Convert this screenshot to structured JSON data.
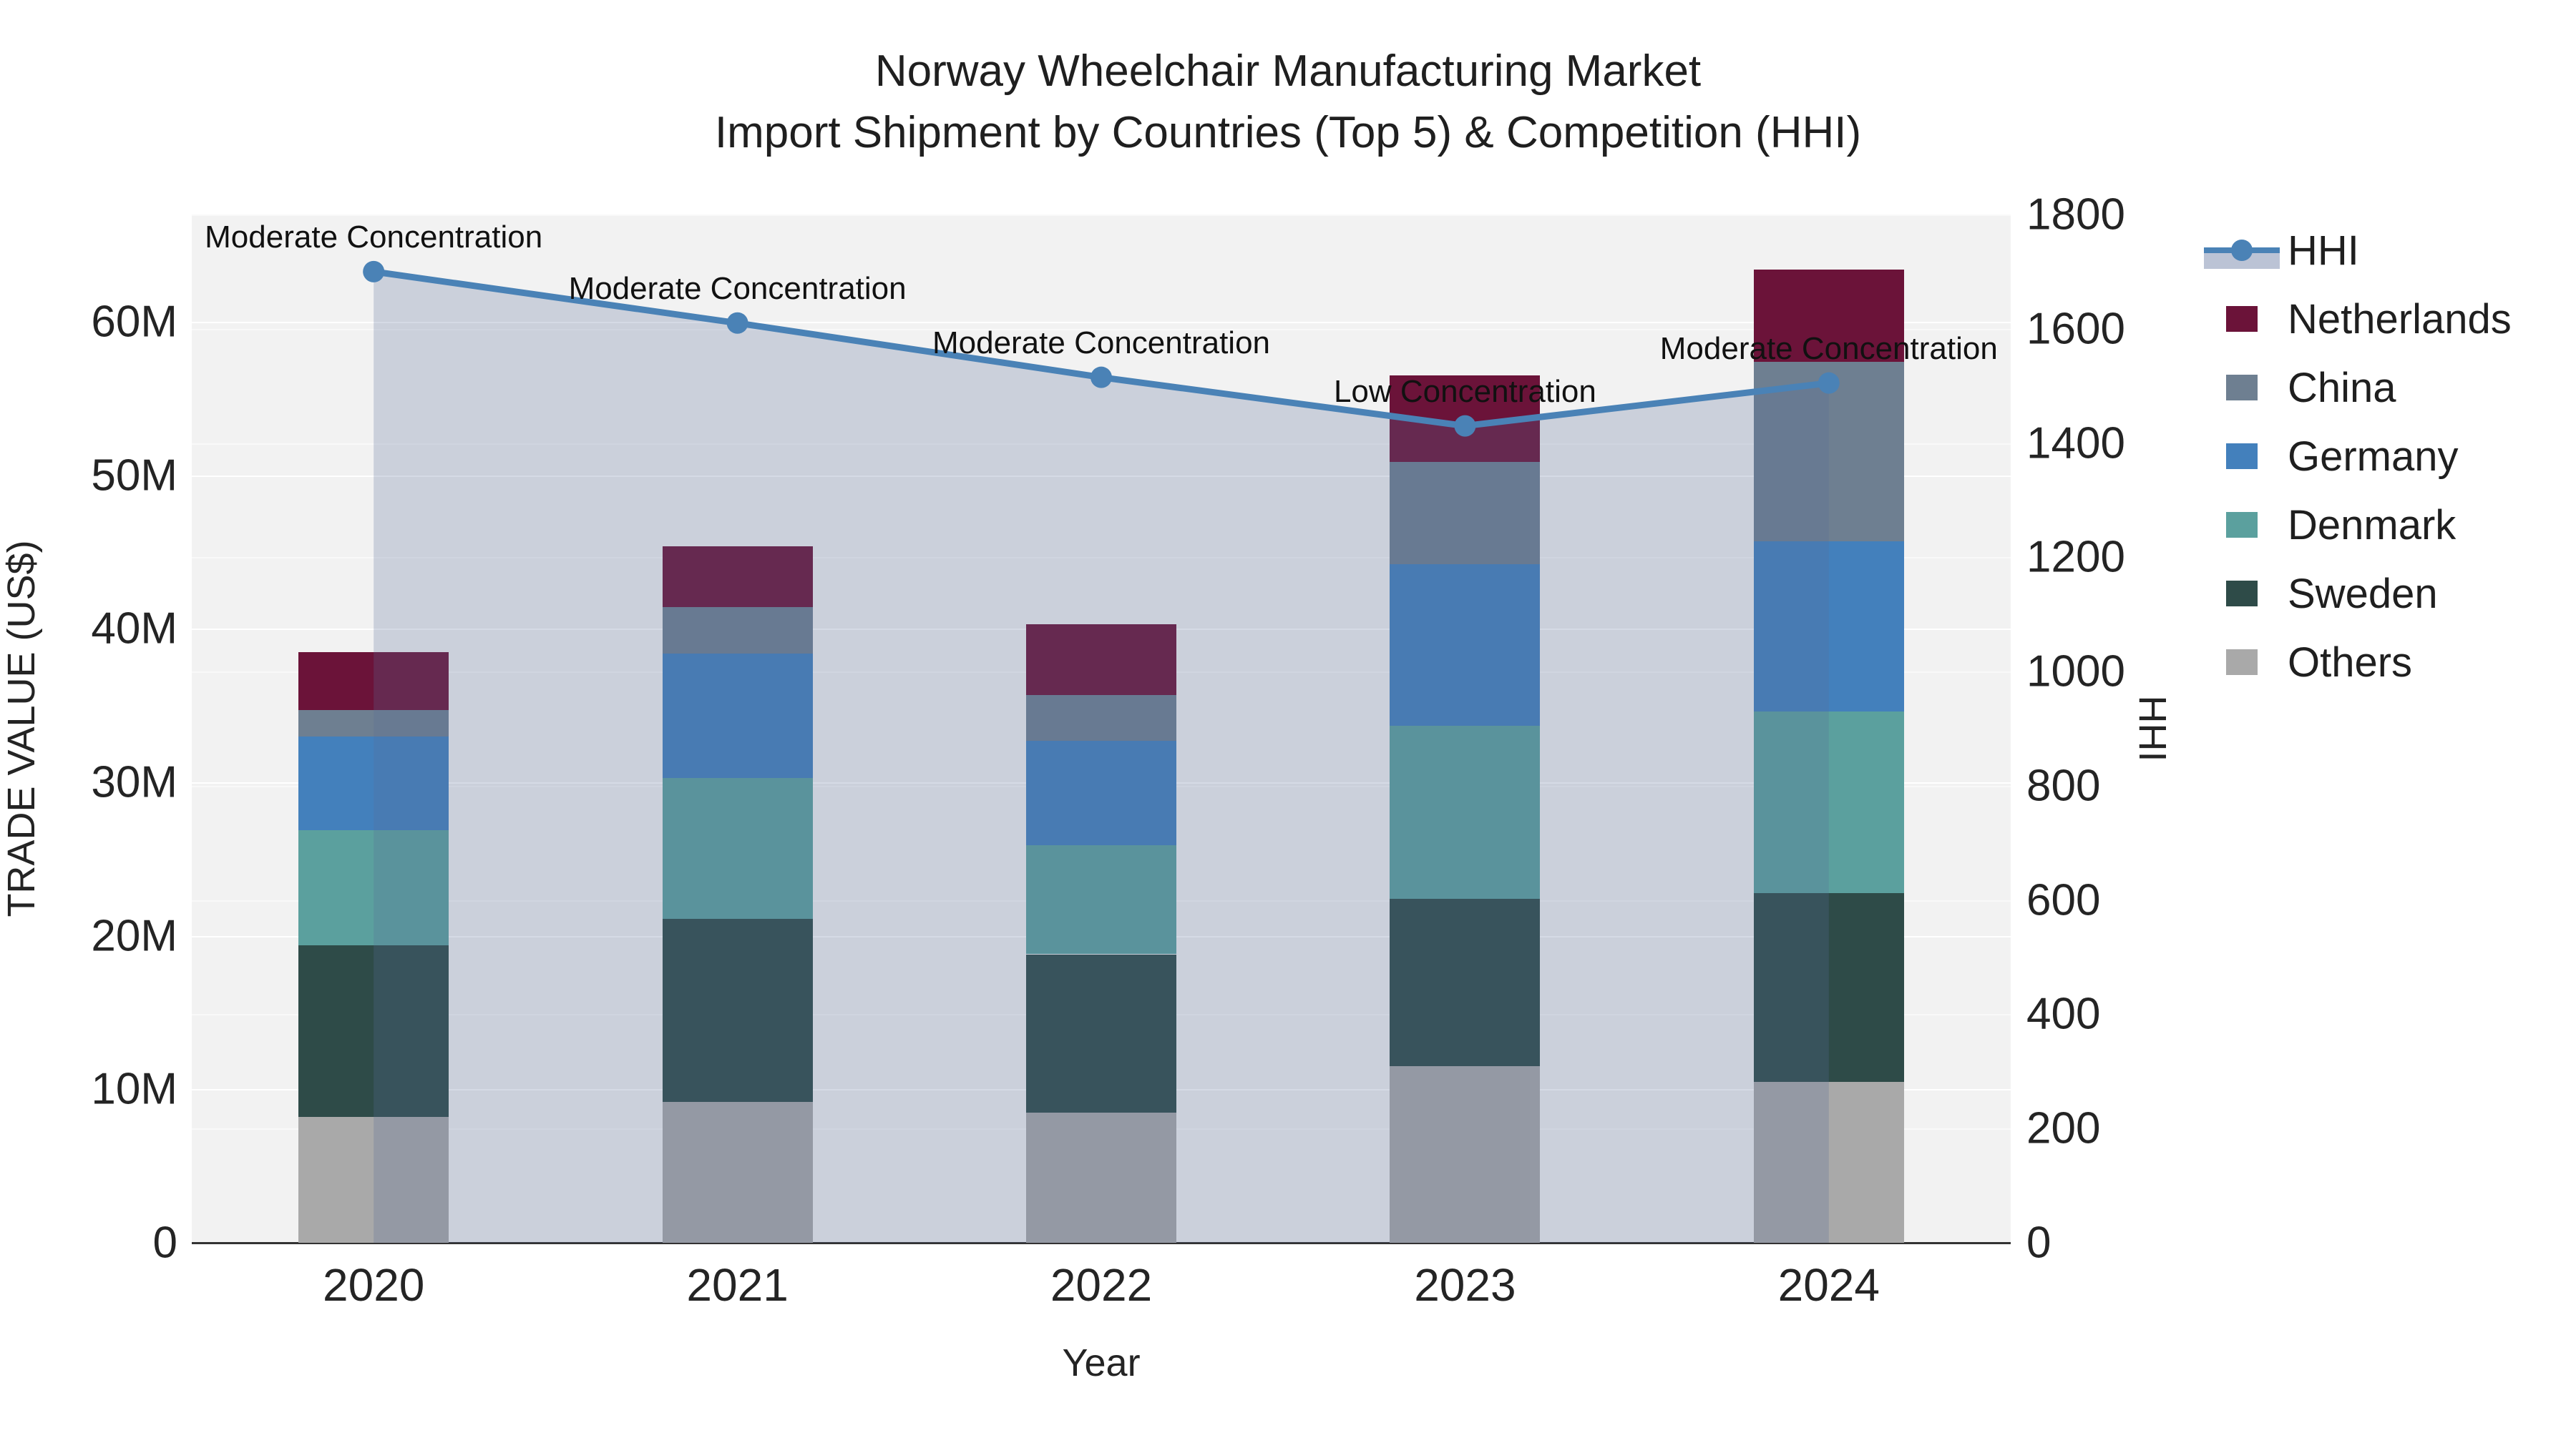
{
  "chart_data": {
    "type": "bar",
    "stacked": true,
    "title_line1": "Norway Wheelchair Manufacturing Market",
    "title_line2": "Import Shipment by Countries (Top 5) & Competition (HHI)",
    "xlabel": "Year",
    "ylabel_left": "TRADE VALUE (US$)",
    "ylabel_right": "HHI",
    "categories": [
      "2020",
      "2021",
      "2022",
      "2023",
      "2024"
    ],
    "series": [
      {
        "name": "Netherlands",
        "values_musd": [
          3.8,
          4.0,
          4.6,
          5.6,
          6.0
        ]
      },
      {
        "name": "China",
        "values_musd": [
          1.7,
          3.0,
          3.0,
          6.7,
          11.7
        ]
      },
      {
        "name": "Germany",
        "values_musd": [
          6.1,
          8.1,
          6.8,
          10.5,
          11.1
        ]
      },
      {
        "name": "Denmark",
        "values_musd": [
          7.5,
          9.2,
          7.1,
          11.3,
          11.8
        ]
      },
      {
        "name": "Sweden",
        "values_musd": [
          11.2,
          11.9,
          10.3,
          10.9,
          12.3
        ]
      },
      {
        "name": "Others",
        "values_musd": [
          8.2,
          9.2,
          8.5,
          11.5,
          10.5
        ]
      }
    ],
    "stack_order_bottom_to_top": [
      "Others",
      "Sweden",
      "Denmark",
      "Germany",
      "China",
      "Netherlands"
    ],
    "line_series": {
      "name": "HHI",
      "values": [
        1700,
        1610,
        1515,
        1430,
        1505
      ],
      "axis": "right",
      "fill_to_zero": true
    },
    "annotations": [
      {
        "x": "2020",
        "text": "Moderate Concentration"
      },
      {
        "x": "2021",
        "text": "Moderate Concentration"
      },
      {
        "x": "2022",
        "text": "Moderate Concentration"
      },
      {
        "x": "2023",
        "text": "Low Concentration"
      },
      {
        "x": "2024",
        "text": "Moderate Concentration"
      }
    ],
    "y_left_ticks": [
      "0",
      "10M",
      "20M",
      "30M",
      "40M",
      "50M",
      "60M"
    ],
    "y_left_tick_values": [
      0,
      10,
      20,
      30,
      40,
      50,
      60
    ],
    "y_left_max_musd": 67,
    "y_right_ticks": [
      "0",
      "200",
      "400",
      "600",
      "800",
      "1000",
      "1200",
      "1400",
      "1600",
      "1800"
    ],
    "y_right_tick_values": [
      0,
      200,
      400,
      600,
      800,
      1000,
      1200,
      1400,
      1600,
      1800
    ],
    "y_right_max": 1800,
    "legend_order": [
      "HHI",
      "Netherlands",
      "China",
      "Germany",
      "Denmark",
      "Sweden",
      "Others"
    ],
    "grid": true,
    "legend_position": "right-outside",
    "colors": {
      "Netherlands": "#6B1339",
      "China": "#6E7F91",
      "Germany": "#4380BC",
      "Denmark": "#5BA09E",
      "Sweden": "#2E4B48",
      "Others": "#A9A9A9",
      "hhi_line": "#4A82B6",
      "hhi_fill": "#566A96",
      "hhi_fill_opacity": 0.25,
      "plot_background": "#F2F2F2",
      "axis_line": "#333333"
    }
  }
}
